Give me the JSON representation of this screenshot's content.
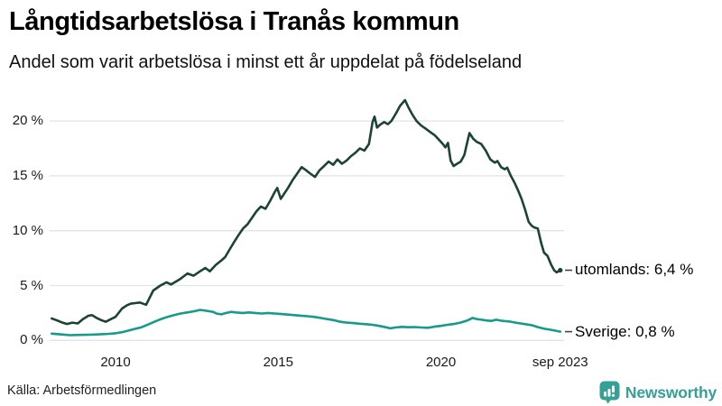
{
  "chart_data": {
    "type": "line",
    "title": "Långtidsarbetslösa i Tranås kommun",
    "subtitle": "Andel som varit arbetslösa i minst ett år uppdelat på födelseland",
    "source": "Källa: Arbetsförmedlingen",
    "brand": "Newsworthy",
    "grid_color": "#e3e3e8",
    "connector_color": "#444444",
    "x_range": [
      2008.04,
      2023.67
    ],
    "ylim": [
      0,
      22.5
    ],
    "legend_position": "right-of-line-ends",
    "grid": "horizontal-only",
    "x_axis": {
      "ticks": [
        {
          "t": 2010,
          "label": "2010"
        },
        {
          "t": 2015,
          "label": "2015"
        },
        {
          "t": 2020,
          "label": "2020"
        },
        {
          "t": 2023.67,
          "label": "sep 2023"
        }
      ]
    },
    "y_axis": {
      "ticks": [
        {
          "v": 0,
          "label": "0 %"
        },
        {
          "v": 5,
          "label": "5 %"
        },
        {
          "v": 10,
          "label": "10 %"
        },
        {
          "v": 15,
          "label": "15 %"
        },
        {
          "v": 20,
          "label": "20 %"
        }
      ]
    },
    "series": [
      {
        "name": "utomlands",
        "label": "utomlands: 6,4 %",
        "last_value_text": "6,4 %",
        "color": "#1d4339",
        "end_dot": true,
        "points": [
          [
            2008.04,
            2.0
          ],
          [
            2008.18,
            1.85
          ],
          [
            2008.34,
            1.65
          ],
          [
            2008.51,
            1.5
          ],
          [
            2008.67,
            1.62
          ],
          [
            2008.84,
            1.55
          ],
          [
            2009.0,
            1.95
          ],
          [
            2009.17,
            2.25
          ],
          [
            2009.28,
            2.3
          ],
          [
            2009.42,
            2.05
          ],
          [
            2009.56,
            1.85
          ],
          [
            2009.7,
            1.7
          ],
          [
            2009.83,
            1.9
          ],
          [
            2010.0,
            2.15
          ],
          [
            2010.2,
            2.9
          ],
          [
            2010.35,
            3.2
          ],
          [
            2010.47,
            3.35
          ],
          [
            2010.6,
            3.4
          ],
          [
            2010.75,
            3.45
          ],
          [
            2010.94,
            3.25
          ],
          [
            2011.16,
            4.55
          ],
          [
            2011.38,
            5.0
          ],
          [
            2011.57,
            5.3
          ],
          [
            2011.71,
            5.1
          ],
          [
            2011.99,
            5.6
          ],
          [
            2012.21,
            6.1
          ],
          [
            2012.4,
            5.9
          ],
          [
            2012.6,
            6.3
          ],
          [
            2012.76,
            6.6
          ],
          [
            2012.9,
            6.3
          ],
          [
            2013.09,
            6.9
          ],
          [
            2013.26,
            7.3
          ],
          [
            2013.37,
            7.6
          ],
          [
            2013.51,
            8.3
          ],
          [
            2013.65,
            9.0
          ],
          [
            2013.78,
            9.6
          ],
          [
            2013.92,
            10.2
          ],
          [
            2014.06,
            10.6
          ],
          [
            2014.2,
            11.2
          ],
          [
            2014.34,
            11.8
          ],
          [
            2014.47,
            12.2
          ],
          [
            2014.61,
            12.0
          ],
          [
            2014.75,
            12.7
          ],
          [
            2014.89,
            13.5
          ],
          [
            2014.97,
            13.9
          ],
          [
            2015.08,
            12.9
          ],
          [
            2015.19,
            13.4
          ],
          [
            2015.3,
            13.9
          ],
          [
            2015.44,
            14.6
          ],
          [
            2015.58,
            15.2
          ],
          [
            2015.72,
            15.8
          ],
          [
            2015.86,
            15.5
          ],
          [
            2015.99,
            15.2
          ],
          [
            2016.13,
            14.9
          ],
          [
            2016.27,
            15.5
          ],
          [
            2016.41,
            15.9
          ],
          [
            2016.55,
            16.3
          ],
          [
            2016.69,
            16.0
          ],
          [
            2016.82,
            16.5
          ],
          [
            2016.96,
            16.1
          ],
          [
            2017.1,
            16.4
          ],
          [
            2017.24,
            16.8
          ],
          [
            2017.37,
            17.1
          ],
          [
            2017.51,
            17.5
          ],
          [
            2017.65,
            17.3
          ],
          [
            2017.79,
            17.9
          ],
          [
            2017.9,
            19.9
          ],
          [
            2017.96,
            20.4
          ],
          [
            2018.04,
            19.4
          ],
          [
            2018.15,
            19.7
          ],
          [
            2018.26,
            19.9
          ],
          [
            2018.37,
            19.7
          ],
          [
            2018.48,
            20.0
          ],
          [
            2018.62,
            20.7
          ],
          [
            2018.75,
            21.4
          ],
          [
            2018.9,
            21.9
          ],
          [
            2019.01,
            21.2
          ],
          [
            2019.12,
            20.6
          ],
          [
            2019.25,
            20.0
          ],
          [
            2019.39,
            19.6
          ],
          [
            2019.53,
            19.3
          ],
          [
            2019.67,
            19.0
          ],
          [
            2019.81,
            18.7
          ],
          [
            2019.94,
            18.3
          ],
          [
            2020.06,
            17.9
          ],
          [
            2020.14,
            17.6
          ],
          [
            2020.22,
            18.0
          ],
          [
            2020.3,
            16.4
          ],
          [
            2020.39,
            15.9
          ],
          [
            2020.5,
            16.1
          ],
          [
            2020.61,
            16.3
          ],
          [
            2020.72,
            16.9
          ],
          [
            2020.83,
            18.3
          ],
          [
            2020.88,
            18.9
          ],
          [
            2020.99,
            18.4
          ],
          [
            2021.1,
            18.1
          ],
          [
            2021.24,
            17.9
          ],
          [
            2021.38,
            17.3
          ],
          [
            2021.52,
            16.5
          ],
          [
            2021.66,
            16.2
          ],
          [
            2021.74,
            16.35
          ],
          [
            2021.85,
            15.8
          ],
          [
            2021.96,
            15.6
          ],
          [
            2022.04,
            15.75
          ],
          [
            2022.15,
            15.0
          ],
          [
            2022.26,
            14.4
          ],
          [
            2022.37,
            13.7
          ],
          [
            2022.48,
            12.9
          ],
          [
            2022.59,
            11.9
          ],
          [
            2022.7,
            10.8
          ],
          [
            2022.79,
            10.45
          ],
          [
            2022.87,
            10.3
          ],
          [
            2022.98,
            10.2
          ],
          [
            2023.09,
            8.8
          ],
          [
            2023.17,
            8.0
          ],
          [
            2023.28,
            7.7
          ],
          [
            2023.39,
            6.9
          ],
          [
            2023.48,
            6.4
          ],
          [
            2023.56,
            6.2
          ],
          [
            2023.67,
            6.4
          ]
        ]
      },
      {
        "name": "sverige",
        "label": "Sverige: 0,8 %",
        "last_value_text": "0,8 %",
        "color": "#169b8a",
        "end_dot": false,
        "points": [
          [
            2008.04,
            0.62
          ],
          [
            2008.3,
            0.55
          ],
          [
            2008.6,
            0.48
          ],
          [
            2008.9,
            0.5
          ],
          [
            2009.2,
            0.52
          ],
          [
            2009.5,
            0.55
          ],
          [
            2009.8,
            0.6
          ],
          [
            2010.0,
            0.65
          ],
          [
            2010.2,
            0.75
          ],
          [
            2010.4,
            0.9
          ],
          [
            2010.6,
            1.05
          ],
          [
            2010.8,
            1.2
          ],
          [
            2011.0,
            1.45
          ],
          [
            2011.2,
            1.7
          ],
          [
            2011.4,
            1.95
          ],
          [
            2011.6,
            2.15
          ],
          [
            2011.8,
            2.3
          ],
          [
            2012.0,
            2.45
          ],
          [
            2012.2,
            2.55
          ],
          [
            2012.4,
            2.65
          ],
          [
            2012.6,
            2.78
          ],
          [
            2012.8,
            2.7
          ],
          [
            2013.0,
            2.6
          ],
          [
            2013.1,
            2.45
          ],
          [
            2013.25,
            2.38
          ],
          [
            2013.4,
            2.5
          ],
          [
            2013.55,
            2.6
          ],
          [
            2013.7,
            2.55
          ],
          [
            2013.9,
            2.5
          ],
          [
            2014.1,
            2.55
          ],
          [
            2014.3,
            2.5
          ],
          [
            2014.5,
            2.45
          ],
          [
            2014.7,
            2.5
          ],
          [
            2014.9,
            2.45
          ],
          [
            2015.1,
            2.4
          ],
          [
            2015.3,
            2.35
          ],
          [
            2015.5,
            2.3
          ],
          [
            2015.7,
            2.25
          ],
          [
            2015.9,
            2.2
          ],
          [
            2016.1,
            2.15
          ],
          [
            2016.3,
            2.05
          ],
          [
            2016.5,
            1.95
          ],
          [
            2016.7,
            1.85
          ],
          [
            2016.9,
            1.7
          ],
          [
            2017.1,
            1.62
          ],
          [
            2017.3,
            1.58
          ],
          [
            2017.5,
            1.52
          ],
          [
            2017.7,
            1.48
          ],
          [
            2017.9,
            1.42
          ],
          [
            2018.1,
            1.32
          ],
          [
            2018.3,
            1.2
          ],
          [
            2018.45,
            1.1
          ],
          [
            2018.6,
            1.18
          ],
          [
            2018.8,
            1.23
          ],
          [
            2019.0,
            1.2
          ],
          [
            2019.2,
            1.22
          ],
          [
            2019.4,
            1.18
          ],
          [
            2019.6,
            1.15
          ],
          [
            2019.8,
            1.25
          ],
          [
            2020.0,
            1.32
          ],
          [
            2020.2,
            1.42
          ],
          [
            2020.4,
            1.5
          ],
          [
            2020.6,
            1.62
          ],
          [
            2020.8,
            1.8
          ],
          [
            2020.97,
            2.05
          ],
          [
            2021.1,
            1.95
          ],
          [
            2021.25,
            1.88
          ],
          [
            2021.4,
            1.82
          ],
          [
            2021.55,
            1.78
          ],
          [
            2021.7,
            1.88
          ],
          [
            2021.85,
            1.8
          ],
          [
            2022.0,
            1.75
          ],
          [
            2022.15,
            1.7
          ],
          [
            2022.3,
            1.62
          ],
          [
            2022.45,
            1.55
          ],
          [
            2022.6,
            1.48
          ],
          [
            2022.8,
            1.38
          ],
          [
            2023.0,
            1.2
          ],
          [
            2023.2,
            1.05
          ],
          [
            2023.35,
            0.98
          ],
          [
            2023.5,
            0.9
          ],
          [
            2023.6,
            0.84
          ],
          [
            2023.67,
            0.8
          ]
        ]
      }
    ]
  }
}
